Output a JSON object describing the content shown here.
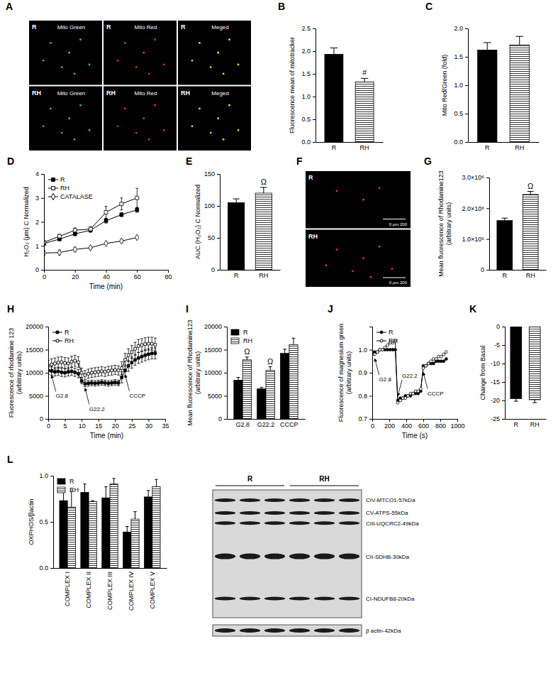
{
  "chart_data": [
    {
      "panel": "A",
      "type": "image",
      "columns": [
        "Mito Green",
        "Mito Red",
        "Meged"
      ],
      "rows": [
        "R",
        "RH"
      ]
    },
    {
      "panel": "B",
      "type": "bar",
      "categories": [
        "R",
        "RH"
      ],
      "values": [
        1.93,
        1.32
      ],
      "errors": [
        0.14,
        0.08
      ],
      "colors": [
        "#000000",
        "#ffffff"
      ],
      "annotations": [
        null,
        "#"
      ],
      "ylabel": [
        "Fluorescence mean of mitotracker"
      ],
      "ylim": [
        0,
        2.5
      ],
      "yticks": [
        {
          "value": 0,
          "label": "0.0"
        },
        0.5,
        {
          "value": 1,
          "label": "1.0"
        },
        1.5,
        {
          "value": 2,
          "label": "2.0"
        },
        2.5
      ]
    },
    {
      "panel": "C",
      "type": "bar",
      "categories": [
        "R",
        "RH"
      ],
      "values": [
        1.62,
        1.71
      ],
      "errors": [
        0.13,
        0.15
      ],
      "colors": [
        "#000000",
        "#ffffff"
      ],
      "ylabel": [
        "Mito Red/Green (fold)"
      ],
      "ylim": [
        0,
        2
      ],
      "yticks": [
        {
          "value": 0,
          "label": "0.0"
        },
        0.5,
        {
          "value": 1,
          "label": "1.0"
        },
        1.5,
        {
          "value": 2,
          "label": "2.0"
        }
      ]
    },
    {
      "panel": "D",
      "type": "line",
      "x": [
        0,
        10,
        20,
        30,
        40,
        50,
        60
      ],
      "xlim": [
        0,
        80
      ],
      "xticks": [
        0,
        20,
        40,
        60,
        80
      ],
      "ylim": [
        0,
        4
      ],
      "yticks": [
        0,
        1,
        2,
        3,
        4
      ],
      "xlabel": "Time (min)",
      "ylabel": [
        "H₂O₂ (µm) C Normalized"
      ],
      "legend": "upper left",
      "series": [
        {
          "name": "R",
          "color": "#000000",
          "marker": "square",
          "values": [
            1.1,
            1.28,
            1.5,
            1.65,
            2.05,
            2.3,
            2.5
          ],
          "errors": [
            0.05,
            0.05,
            0.08,
            0.08,
            0.1,
            0.08,
            0.1
          ]
        },
        {
          "name": "RH",
          "color": "#000000",
          "marker": "open-square",
          "values": [
            1.15,
            1.4,
            1.65,
            1.7,
            2.4,
            2.75,
            3.0
          ],
          "errors": [
            0.05,
            0.08,
            0.1,
            0.1,
            0.25,
            0.25,
            0.4
          ]
        },
        {
          "name": "CATALASE",
          "color": "#000000",
          "marker": "open-diamond",
          "values": [
            0.7,
            0.72,
            0.85,
            0.92,
            1.1,
            1.2,
            1.35
          ],
          "errors": [
            0.1,
            0.1,
            0.08,
            0.05,
            0.05,
            0.05,
            0.05
          ]
        }
      ]
    },
    {
      "panel": "E",
      "type": "bar",
      "categories": [
        "R",
        "RH"
      ],
      "values": [
        105,
        120
      ],
      "errors": [
        6,
        9
      ],
      "colors": [
        "#000000",
        "#ffffff"
      ],
      "annotations": [
        null,
        "Ω"
      ],
      "ylabel": [
        "AUC (H₂O₂) C Normalized"
      ],
      "ylim": [
        0,
        150
      ],
      "yticks": [
        0,
        50,
        100,
        150
      ]
    },
    {
      "panel": "F",
      "type": "image",
      "rows": [
        "R",
        "RH"
      ],
      "scale_label": "0 µm 200"
    },
    {
      "panel": "G",
      "type": "bar",
      "categories": [
        "R",
        "RH"
      ],
      "values": [
        1600000,
        2450000
      ],
      "errors": [
        80000,
        100000
      ],
      "colors": [
        "#000000",
        "#ffffff"
      ],
      "annotations": [
        null,
        "Ω"
      ],
      "ylabel": [
        "Mean fluorescence of Rhodamine123",
        "(arbitrary units)"
      ],
      "ylim": [
        0,
        3000000
      ],
      "yticks": [
        0,
        {
          "value": 1000000,
          "label": "1.0×10⁶"
        },
        {
          "value": 2000000,
          "label": "2.0×10⁶"
        },
        {
          "value": 3000000,
          "label": "3.0×10⁶"
        }
      ]
    },
    {
      "panel": "H",
      "type": "line",
      "x": [
        0,
        1,
        2,
        3,
        4,
        5,
        6,
        7,
        8,
        9,
        10,
        11,
        12,
        13,
        14,
        15,
        16,
        17,
        18,
        19,
        20,
        21,
        22,
        23,
        24,
        25,
        26,
        27,
        28,
        29,
        30,
        31,
        32
      ],
      "xlim": [
        0,
        35
      ],
      "xticks": [
        0,
        5,
        10,
        15,
        20,
        25,
        30,
        35
      ],
      "ylim": [
        0,
        20000
      ],
      "yticks": [
        0,
        5000,
        10000,
        15000,
        20000
      ],
      "xlabel": "Time (min)",
      "ylabel": [
        "Fluorescence of rhodamine 123",
        "(arbitrary units)"
      ],
      "legend": "upper left",
      "events": [
        {
          "label": "G2.8",
          "x": 1
        },
        {
          "label": "G22.2",
          "x": 11
        },
        {
          "label": "CCCP",
          "x": 23
        }
      ],
      "series": [
        {
          "name": "R",
          "color": "#000000",
          "marker": "square",
          "values": [
            10500,
            10400,
            10200,
            10300,
            10100,
            10000,
            10200,
            10300,
            10100,
            9800,
            8200,
            7600,
            7700,
            7800,
            7700,
            7800,
            7900,
            7800,
            7700,
            7800,
            7900,
            7800,
            9000,
            10500,
            11500,
            12200,
            12800,
            13200,
            13500,
            13800,
            14000,
            14200,
            14200
          ],
          "errors": [
            900,
            900,
            900,
            900,
            900,
            900,
            900,
            900,
            900,
            900,
            600,
            600,
            600,
            600,
            600,
            600,
            600,
            600,
            600,
            600,
            600,
            600,
            1200,
            1200,
            1200,
            1200,
            1200,
            1200,
            1200,
            1200,
            1200,
            1200,
            1200
          ]
        },
        {
          "name": "RH",
          "color": "#000000",
          "marker": "open-square",
          "values": [
            11500,
            11800,
            12000,
            12200,
            12300,
            12100,
            12000,
            12400,
            12600,
            12300,
            10000,
            9500,
            9800,
            10000,
            10100,
            10200,
            10300,
            10200,
            10400,
            10500,
            10600,
            10500,
            11000,
            12800,
            13800,
            14500,
            15200,
            15800,
            16000,
            16200,
            16300,
            16300,
            16100
          ],
          "errors": [
            1200,
            1200,
            1200,
            1200,
            1200,
            1200,
            1200,
            1200,
            1200,
            1200,
            1000,
            1000,
            1000,
            1000,
            1000,
            1000,
            1000,
            1000,
            1000,
            1000,
            1000,
            1000,
            1400,
            1400,
            1400,
            1400,
            1400,
            1400,
            1400,
            1400,
            1400,
            1400,
            1400
          ]
        }
      ]
    },
    {
      "panel": "I",
      "type": "bar",
      "categories": [
        "G2.8",
        "G22.2",
        "CCCP"
      ],
      "legend": "upper left",
      "ylabel": [
        "Mean fluorescence of Rhodamine123",
        "(arbitrary units)"
      ],
      "ylim": [
        0,
        20000
      ],
      "yticks": [
        0,
        5000,
        10000,
        15000,
        20000
      ],
      "series": [
        {
          "name": "R",
          "color": "#000000",
          "values": [
            8400,
            6500,
            14200
          ],
          "errors": [
            600,
            300,
            900
          ]
        },
        {
          "name": "RH",
          "color": "#ffffff",
          "values": [
            12800,
            10500,
            16100
          ],
          "errors": [
            600,
            800,
            1400
          ],
          "annotations": [
            "Ω",
            "Ω",
            null
          ]
        }
      ]
    },
    {
      "panel": "J",
      "type": "line",
      "x": [
        0,
        30,
        60,
        90,
        120,
        150,
        180,
        210,
        240,
        270,
        300,
        330,
        360,
        390,
        420,
        450,
        480,
        510,
        540,
        570,
        600,
        630,
        660,
        690,
        720,
        750,
        780,
        810,
        840,
        870
      ],
      "xlim": [
        0,
        1000
      ],
      "xticks": [
        0,
        200,
        400,
        600,
        800,
        1000
      ],
      "ylim": [
        0.7,
        1.1
      ],
      "yticks": [
        0.7,
        0.8,
        0.9,
        {
          "value": 1,
          "label": "1.0"
        }
      ],
      "xlabel": "Time (s)",
      "ylabel": [
        "Fluorescence of magnesium green",
        "(arbitrary units)"
      ],
      "legend": "upper left",
      "events": [
        {
          "label": "G2.8",
          "x": 30
        },
        {
          "label": "G22.2",
          "x": 300
        },
        {
          "label": "CCCP",
          "x": 600
        }
      ],
      "series": [
        {
          "name": "R",
          "color": "#000000",
          "marker": "circle",
          "values": [
            0.99,
            0.99,
            0.99,
            1.0,
            1.0,
            1.0,
            1.0,
            1.0,
            1.0,
            1.0,
            0.78,
            0.79,
            0.79,
            0.8,
            0.8,
            0.8,
            0.81,
            0.81,
            0.81,
            0.82,
            0.93,
            0.93,
            0.94,
            0.94,
            0.94,
            0.95,
            0.95,
            0.95,
            0.95,
            0.96
          ]
        },
        {
          "name": "RH",
          "color": "#000000",
          "marker": "open-circle",
          "values": [
            0.98,
            0.98,
            0.99,
            1.0,
            1.0,
            1.01,
            1.02,
            1.03,
            1.03,
            1.04,
            0.77,
            0.78,
            0.79,
            0.79,
            0.8,
            0.81,
            0.81,
            0.82,
            0.82,
            0.83,
            0.92,
            0.93,
            0.94,
            0.95,
            0.96,
            0.96,
            0.97,
            0.97,
            0.98,
            0.99
          ]
        }
      ]
    },
    {
      "panel": "K",
      "type": "bar",
      "categories": [
        "R",
        "RH"
      ],
      "values": [
        -19.5,
        -19.8
      ],
      "errors": [
        0.7,
        0.8
      ],
      "colors": [
        "#000000",
        "#ffffff"
      ],
      "ylabel": [
        "Change from Basal"
      ],
      "ylim": [
        -25,
        0
      ],
      "yticks": [
        -25,
        -20,
        -15,
        -10,
        -5,
        0
      ]
    },
    {
      "panel": "L",
      "type": "bar",
      "categories": [
        "COMPLEX I",
        "COMPLEX II",
        "COMPLEX III",
        "COMPLEX IV",
        "COMPLEX V"
      ],
      "legend": "upper left",
      "ylabel": [
        "OXPHOS/βactin"
      ],
      "ylim": [
        0,
        1
      ],
      "yticks": [
        {
          "value": 0,
          "label": "0.0"
        },
        0.5,
        {
          "value": 1,
          "label": "1.0"
        }
      ],
      "series": [
        {
          "name": "R",
          "color": "#000000",
          "values": [
            0.73,
            0.82,
            0.76,
            0.39,
            0.77
          ],
          "errors": [
            0.14,
            0.09,
            0.12,
            0.06,
            0.07
          ]
        },
        {
          "name": "RH",
          "color": "#ffffff",
          "values": [
            0.66,
            0.72,
            0.91,
            0.53,
            0.88
          ],
          "errors": [
            0.17,
            0.01,
            0.06,
            0.08,
            0.08
          ]
        }
      ],
      "blot": {
        "groups": [
          "R",
          "RH"
        ],
        "bands": [
          "CIV-MTCO1-57kDa",
          "CV-ATPS-55kDa",
          "CIII-UQCRC2-49kDa",
          "CII-SDHB-30kDa",
          "CI-NDUFB8-20kDa"
        ],
        "loading": "β actin-42kDa"
      }
    }
  ]
}
